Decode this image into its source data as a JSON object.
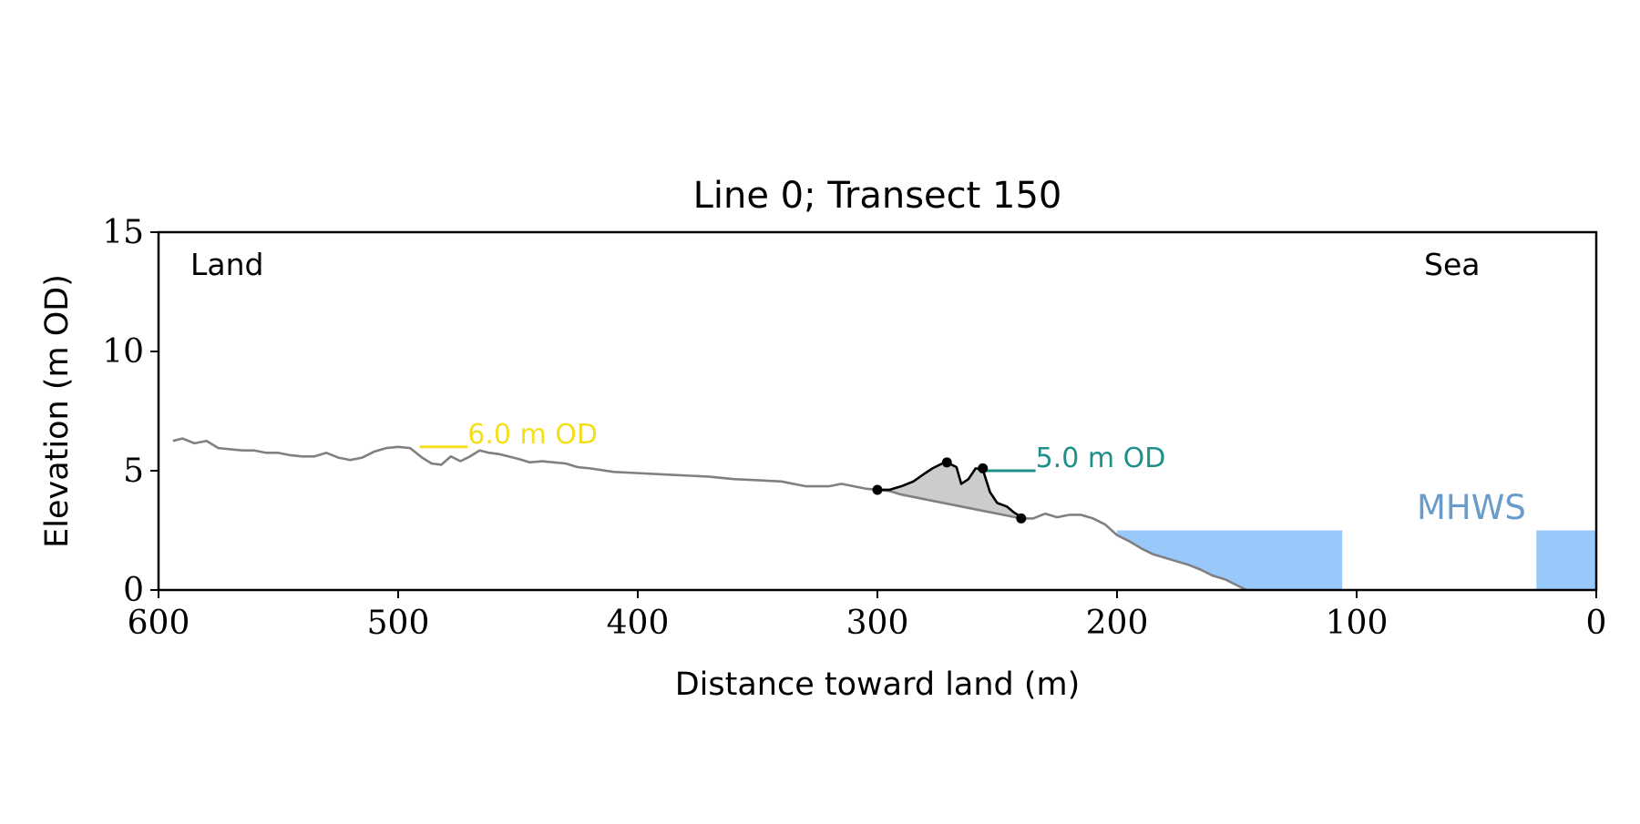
{
  "chart_data": {
    "type": "line",
    "title": "Line 0; Transect 150",
    "xlabel": "Distance toward land (m)",
    "ylabel": "Elevation (m OD)",
    "xlim": [
      600,
      0
    ],
    "ylim": [
      0,
      15
    ],
    "x_ticks": [
      "600",
      "500",
      "400",
      "300",
      "200",
      "100",
      "0"
    ],
    "y_ticks": [
      "0",
      "5",
      "10",
      "15"
    ],
    "grid": false,
    "corner_labels": {
      "left": "Land",
      "right": "Sea"
    },
    "profile": {
      "color": "#808080",
      "x": [
        594,
        590,
        585,
        580,
        575,
        570,
        565,
        560,
        555,
        550,
        545,
        540,
        535,
        530,
        525,
        520,
        515,
        510,
        505,
        500,
        495,
        490,
        486,
        482,
        478,
        474,
        470,
        466,
        462,
        458,
        454,
        450,
        445,
        440,
        435,
        430,
        425,
        420,
        410,
        400,
        390,
        380,
        370,
        360,
        350,
        340,
        330,
        320,
        315,
        310,
        305,
        300,
        295,
        290,
        280,
        270,
        260,
        250,
        245,
        240,
        235,
        230,
        225,
        220,
        215,
        210,
        205,
        200,
        195,
        190,
        185,
        180,
        175,
        170,
        165,
        160,
        155,
        150,
        146
      ],
      "y": [
        6.25,
        6.35,
        6.15,
        6.25,
        5.95,
        5.9,
        5.85,
        5.85,
        5.75,
        5.75,
        5.65,
        5.6,
        5.6,
        5.75,
        5.55,
        5.45,
        5.55,
        5.8,
        5.95,
        6.0,
        5.95,
        5.55,
        5.3,
        5.25,
        5.6,
        5.4,
        5.6,
        5.85,
        5.75,
        5.7,
        5.6,
        5.5,
        5.35,
        5.4,
        5.35,
        5.3,
        5.15,
        5.1,
        4.95,
        4.9,
        4.85,
        4.8,
        4.75,
        4.65,
        4.6,
        4.55,
        4.35,
        4.35,
        4.45,
        4.35,
        4.25,
        4.2,
        4.15,
        4.0,
        3.8,
        3.6,
        3.4,
        3.2,
        3.1,
        3.0,
        3.0,
        3.2,
        3.05,
        3.15,
        3.15,
        3.0,
        2.75,
        2.3,
        2.05,
        1.75,
        1.5,
        1.35,
        1.2,
        1.05,
        0.85,
        0.6,
        0.45,
        0.2,
        0.0
      ]
    },
    "dune": {
      "color": "#000000",
      "fill": "#cccccc",
      "x": [
        300,
        295,
        290,
        285,
        280,
        277,
        273,
        270,
        267,
        265,
        262,
        259,
        256,
        253,
        250,
        246,
        243,
        239
      ],
      "y": [
        4.2,
        4.2,
        4.35,
        4.55,
        4.9,
        5.1,
        5.3,
        5.3,
        5.15,
        4.45,
        4.65,
        5.1,
        5.05,
        4.1,
        3.65,
        3.5,
        3.25,
        3.0
      ],
      "markers": [
        {
          "x": 300,
          "y": 4.2
        },
        {
          "x": 271,
          "y": 5.35
        },
        {
          "x": 256,
          "y": 5.1
        },
        {
          "x": 240,
          "y": 3.0
        }
      ]
    },
    "levels": [
      {
        "label": "6.0 m OD",
        "value": 6.0,
        "x_range": [
          491,
          471
        ],
        "color": "#f5de1c"
      },
      {
        "label": "5.0 m OD",
        "value": 5.0,
        "x_range": [
          256,
          234
        ],
        "color": "#1f8f89"
      }
    ],
    "mhws": {
      "label": "MHWS",
      "value": 2.5,
      "color": "#99c8fa",
      "label_color": "#6a9ccb",
      "regions": [
        {
          "x_from": 200,
          "x_to": 106
        },
        {
          "x_from": 25,
          "x_to": 0
        }
      ]
    }
  }
}
